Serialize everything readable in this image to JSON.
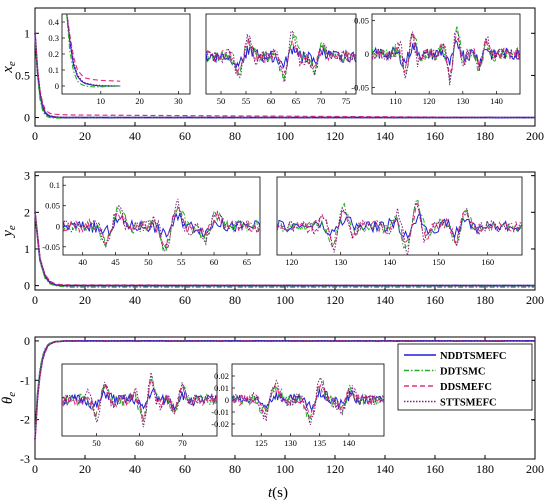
{
  "figure": {
    "xlabel_main": "t",
    "xlabel_unit": "(s)",
    "colors": {
      "NDDTSMEFC": "#1f1fd6",
      "DDTSMC": "#22b022",
      "DDSMEFC": "#e0307a",
      "STTSMEFC": "#7a1f7a"
    }
  },
  "chart_data": [
    {
      "type": "line",
      "ylabel": "x",
      "ylabel_sub": "e",
      "xlim": [
        0,
        200
      ],
      "ylim": [
        -0.1,
        1.3
      ],
      "xticks": [
        "0",
        "20",
        "40",
        "60",
        "80",
        "100",
        "120",
        "140",
        "160",
        "180",
        "200"
      ],
      "yticks": [
        "0",
        "0.5",
        "1"
      ],
      "series": [
        {
          "name": "NDDTSMEFC",
          "x": [
            0,
            1,
            2,
            3,
            4,
            5,
            6,
            8,
            10,
            15,
            200
          ],
          "y": [
            1.0,
            0.55,
            0.28,
            0.13,
            0.06,
            0.03,
            0.015,
            0.005,
            0.0,
            0.0,
            0.0
          ]
        },
        {
          "name": "DDTSMC",
          "x": [
            0,
            1,
            2,
            3,
            4,
            5,
            6,
            8,
            10,
            15,
            200
          ],
          "y": [
            1.0,
            0.5,
            0.22,
            0.09,
            0.03,
            0.01,
            0.0,
            -0.005,
            -0.005,
            0.0,
            0.0
          ]
        },
        {
          "name": "DDSMEFC",
          "x": [
            0,
            1,
            2,
            3,
            4,
            5,
            6,
            8,
            10,
            15,
            200
          ],
          "y": [
            1.0,
            0.58,
            0.32,
            0.18,
            0.1,
            0.07,
            0.05,
            0.04,
            0.035,
            0.03,
            0.0
          ]
        },
        {
          "name": "STTSMEFC",
          "x": [
            0,
            1,
            2,
            3,
            4,
            5,
            6,
            8,
            10,
            15,
            200
          ],
          "y": [
            1.0,
            0.56,
            0.3,
            0.15,
            0.07,
            0.035,
            0.02,
            0.008,
            0.003,
            0.0,
            0.0
          ]
        }
      ],
      "insets": [
        {
          "xlim": [
            0,
            33
          ],
          "ylim": [
            -0.05,
            0.45
          ],
          "xticks": [
            "10",
            "20",
            "30"
          ],
          "yticks": [
            "0",
            "0.1",
            "0.2",
            "0.3",
            "0.4"
          ]
        },
        {
          "xlim": [
            47,
            77
          ],
          "ylim": [
            -0.07,
            0.08
          ],
          "xticks": [
            "50",
            "55",
            "60",
            "65",
            "70",
            "75"
          ],
          "yticks": []
        },
        {
          "xlim": [
            103,
            147
          ],
          "ylim": [
            -0.06,
            0.06
          ],
          "xticks": [
            "110",
            "120",
            "130",
            "140"
          ],
          "yticks": [
            "0.05",
            "0",
            "-0.05"
          ]
        }
      ]
    },
    {
      "type": "line",
      "ylabel": "y",
      "ylabel_sub": "e",
      "xlim": [
        0,
        200
      ],
      "ylim": [
        -0.12,
        3.1
      ],
      "xticks": [
        "0",
        "20",
        "40",
        "60",
        "80",
        "100",
        "120",
        "140",
        "160",
        "180",
        "200"
      ],
      "yticks": [
        "0",
        "1",
        "2",
        "3"
      ],
      "series": [
        {
          "name": "NDDTSMEFC",
          "x": [
            0,
            2,
            4,
            6,
            8,
            10,
            14,
            200
          ],
          "y": [
            2.0,
            0.7,
            0.25,
            0.08,
            0.02,
            0.0,
            0.0,
            0.0
          ]
        },
        {
          "name": "DDTSMC",
          "x": [
            0,
            2,
            4,
            6,
            8,
            10,
            14,
            200
          ],
          "y": [
            2.0,
            0.65,
            0.2,
            0.05,
            0.0,
            -0.02,
            -0.04,
            -0.04
          ]
        },
        {
          "name": "DDSMEFC",
          "x": [
            0,
            2,
            4,
            6,
            8,
            10,
            14,
            200
          ],
          "y": [
            2.0,
            0.75,
            0.3,
            0.12,
            0.05,
            0.03,
            0.02,
            0.0
          ]
        },
        {
          "name": "STTSMEFC",
          "x": [
            0,
            2,
            4,
            6,
            8,
            10,
            14,
            200
          ],
          "y": [
            2.0,
            0.72,
            0.27,
            0.1,
            0.03,
            0.005,
            0.0,
            0.0
          ]
        }
      ],
      "insets": [
        {
          "xlim": [
            37,
            67
          ],
          "ylim": [
            -0.07,
            0.12
          ],
          "xticks": [
            "40",
            "45",
            "50",
            "55",
            "60",
            "65"
          ],
          "yticks": [
            "0.1",
            "0.05",
            "0",
            "-0.05"
          ]
        },
        {
          "xlim": [
            117,
            167
          ],
          "ylim": [
            -0.07,
            0.12
          ],
          "xticks": [
            "120",
            "130",
            "140",
            "150",
            "160"
          ],
          "yticks": []
        }
      ]
    },
    {
      "type": "line",
      "ylabel": "θ",
      "ylabel_sub": "e",
      "xlim": [
        0,
        200
      ],
      "ylim": [
        -3,
        0.1
      ],
      "xticks": [
        "0",
        "20",
        "40",
        "60",
        "80",
        "100",
        "120",
        "140",
        "160",
        "180",
        "200"
      ],
      "yticks": [
        "0",
        "-1",
        "-2",
        "-3"
      ],
      "series": [
        {
          "name": "NDDTSMEFC",
          "x": [
            0,
            1,
            2,
            3,
            4,
            5,
            6,
            8,
            12,
            200
          ],
          "y": [
            -2.5,
            -1.4,
            -0.8,
            -0.45,
            -0.25,
            -0.13,
            -0.07,
            -0.02,
            0.0,
            0.0
          ]
        },
        {
          "name": "DDTSMC",
          "x": [
            0,
            1,
            2,
            3,
            4,
            5,
            6,
            8,
            12,
            200
          ],
          "y": [
            -2.5,
            -1.3,
            -0.7,
            -0.38,
            -0.2,
            -0.1,
            -0.05,
            -0.01,
            0.0,
            0.0
          ]
        },
        {
          "name": "DDSMEFC",
          "x": [
            0,
            1,
            2,
            3,
            4,
            5,
            6,
            8,
            12,
            200
          ],
          "y": [
            -2.5,
            -1.5,
            -0.9,
            -0.5,
            -0.3,
            -0.16,
            -0.08,
            -0.03,
            0.0,
            0.0
          ]
        },
        {
          "name": "STTSMEFC",
          "x": [
            0,
            1,
            2,
            3,
            4,
            5,
            6,
            8,
            12,
            200
          ],
          "y": [
            -2.5,
            -1.45,
            -0.85,
            -0.48,
            -0.27,
            -0.14,
            -0.08,
            -0.025,
            0.0,
            0.0
          ]
        }
      ],
      "insets": [
        {
          "xlim": [
            42,
            78
          ],
          "ylim": [
            -0.03,
            0.03
          ],
          "xticks": [
            "50",
            "60",
            "70"
          ],
          "yticks": []
        },
        {
          "xlim": [
            120,
            146
          ],
          "ylim": [
            -0.03,
            0.03
          ],
          "xticks": [
            "125",
            "130",
            "135",
            "140"
          ],
          "yticks": [
            "0.02",
            "0.01",
            "0",
            "-0.01",
            "-0.02"
          ]
        }
      ],
      "legend": [
        "NDDTSMEFC",
        "DDTSMC",
        "DDSMEFC",
        "STTSMEFC"
      ],
      "legend_position": "right"
    }
  ]
}
